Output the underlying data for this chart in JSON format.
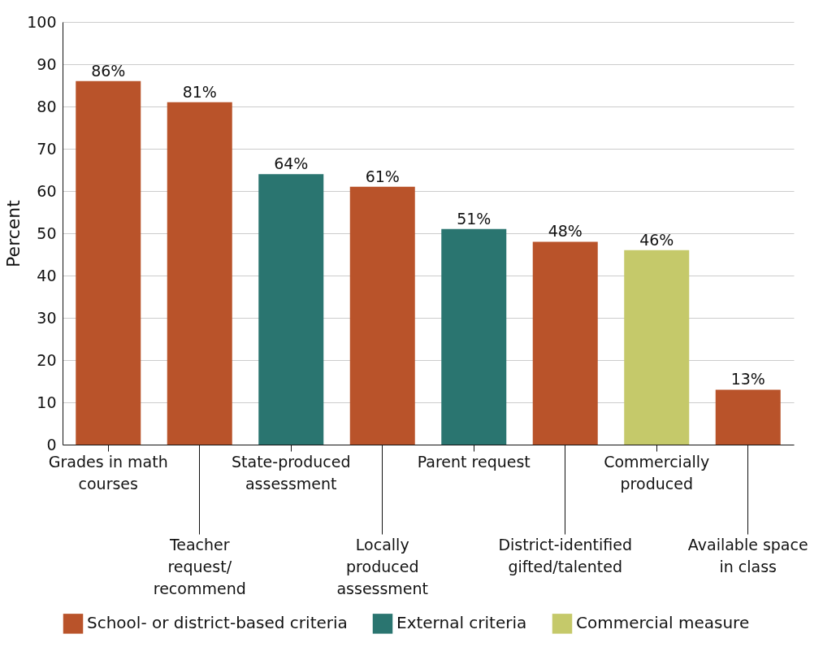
{
  "chart_data": {
    "type": "bar",
    "ylabel": "Percent",
    "categories": [
      "Grades in math courses",
      "Teacher request/ recommend",
      "State-produced assessment",
      "Locally produced assessment",
      "Parent request",
      "District-identified gifted/talented",
      "Commercially produced",
      "Available space in class"
    ],
    "series": [
      {
        "name": "School- or district-based criteria",
        "color": "#b9532a",
        "values": [
          86,
          81,
          null,
          61,
          null,
          48,
          null,
          13
        ],
        "value_labels": [
          "86%",
          "81%",
          null,
          "61%",
          null,
          "48%",
          null,
          "13%"
        ]
      },
      {
        "name": "External criteria",
        "color": "#2a7570",
        "values": [
          null,
          null,
          64,
          null,
          51,
          null,
          null,
          null
        ],
        "value_labels": [
          null,
          null,
          "64%",
          null,
          "51%",
          null,
          null,
          null
        ]
      },
      {
        "name": "Commercial measure",
        "color": "#c5c96a",
        "values": [
          null,
          null,
          null,
          null,
          null,
          null,
          46,
          null
        ],
        "value_labels": [
          null,
          null,
          null,
          null,
          null,
          null,
          "46%",
          null
        ]
      }
    ],
    "ylim": [
      0,
      100
    ],
    "yticks": [
      0,
      10,
      20,
      30,
      40,
      50,
      60,
      70,
      80,
      90,
      100
    ],
    "grid": "y",
    "legend": "bottom"
  }
}
